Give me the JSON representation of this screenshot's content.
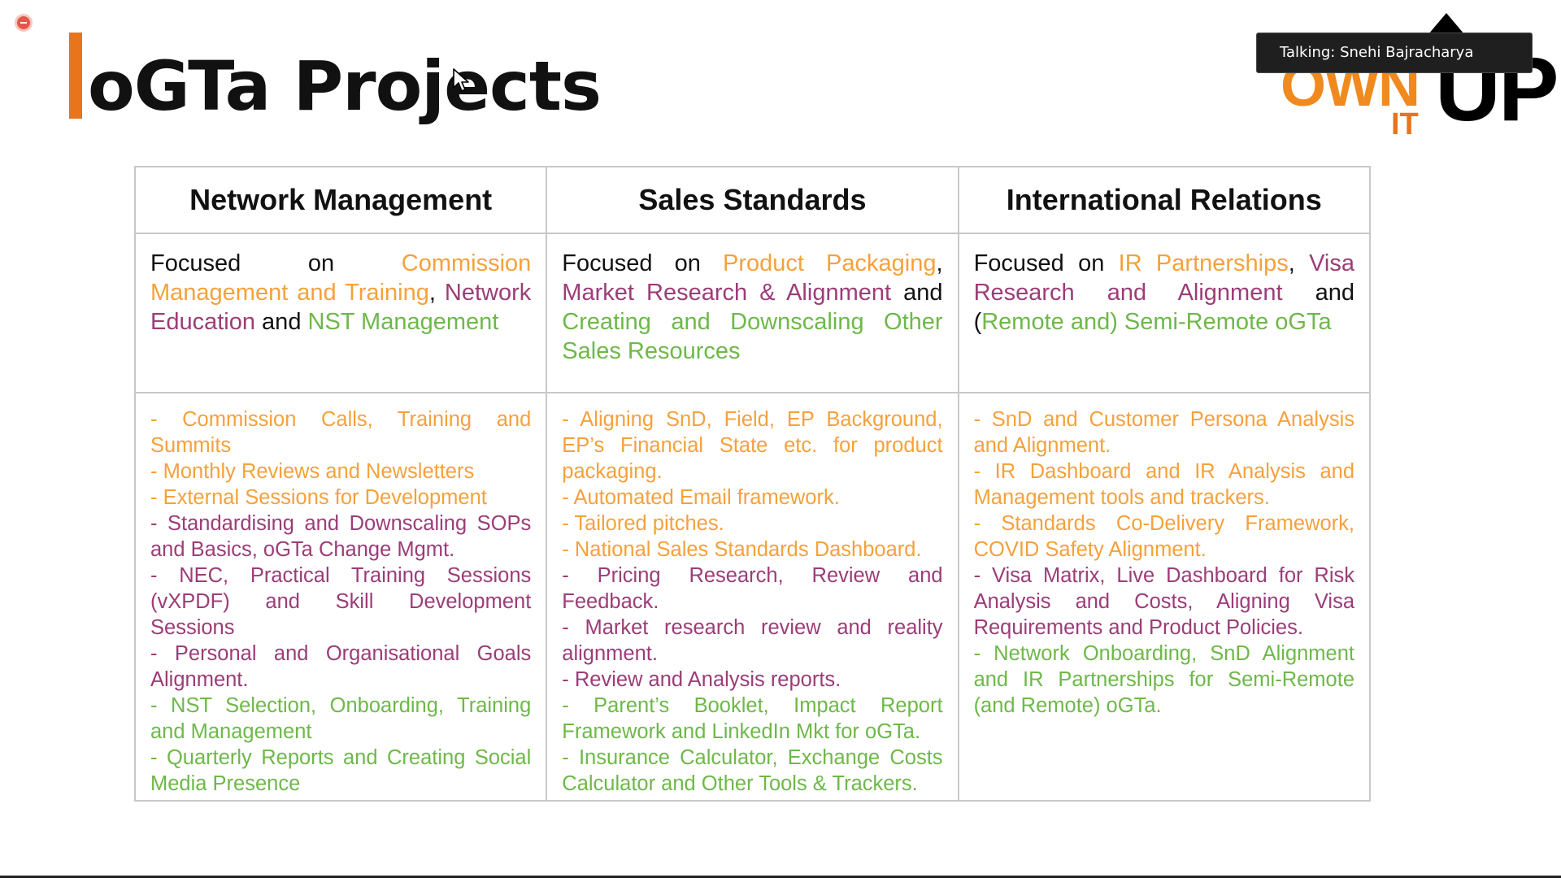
{
  "slide": {
    "title": "oGTa Projects"
  },
  "notification": {
    "text": "Talking: Snehi Bajracharya"
  },
  "logo": {
    "own": "OWN",
    "it": "IT",
    "up": "UP"
  },
  "table": {
    "columns": [
      {
        "header": "Network Management",
        "focus": [
          {
            "text": "Focused on ",
            "color": "black"
          },
          {
            "text": "Commission Management and Training",
            "color": "orange"
          },
          {
            "text": ", ",
            "color": "black"
          },
          {
            "text": "Network Education",
            "color": "purple"
          },
          {
            "text": " and ",
            "color": "black"
          },
          {
            "text": "NST Management",
            "color": "green"
          }
        ],
        "items": [
          {
            "text": "- Commission Calls, Training and Summits",
            "color": "orange"
          },
          {
            "text": "- Monthly Reviews and Newsletters",
            "color": "orange"
          },
          {
            "text": "- External Sessions for Development",
            "color": "orange"
          },
          {
            "text": "- Standardising and Downscaling SOPs and Basics, oGTa Change Mgmt.",
            "color": "purple"
          },
          {
            "text": "- NEC, Practical Training Sessions (vXPDF) and Skill Development Sessions",
            "color": "purple"
          },
          {
            "text": "- Personal and Organisational Goals Alignment.",
            "color": "purple"
          },
          {
            "text": "- NST Selection, Onboarding, Training and Management",
            "color": "green"
          },
          {
            "text": "- Quarterly Reports and Creating Social Media Presence",
            "color": "green"
          }
        ]
      },
      {
        "header": "Sales Standards",
        "focus": [
          {
            "text": "Focused on ",
            "color": "black"
          },
          {
            "text": "Product Packaging",
            "color": "orange"
          },
          {
            "text": ", ",
            "color": "black"
          },
          {
            "text": "Market Research & Alignment",
            "color": "purple"
          },
          {
            "text": " and ",
            "color": "black"
          },
          {
            "text": "Creating and Downscaling Other Sales Resources",
            "color": "green"
          }
        ],
        "items": [
          {
            "text": "- Aligning SnD, Field, EP Background, EP’s Financial State etc. for product packaging.",
            "color": "orange"
          },
          {
            "text": "- Automated Email framework.",
            "color": "orange"
          },
          {
            "text": "- Tailored pitches.",
            "color": "orange"
          },
          {
            "text": "- National Sales Standards Dashboard.",
            "color": "orange"
          },
          {
            "text": "- Pricing Research, Review and Feedback.",
            "color": "purple"
          },
          {
            "text": "- Market research review and reality alignment.",
            "color": "purple"
          },
          {
            "text": "- Review and Analysis reports.",
            "color": "purple"
          },
          {
            "text": "- Parent’s Booklet, Impact Report Framework and LinkedIn Mkt for oGTa.",
            "color": "green"
          },
          {
            "text": "- Insurance Calculator, Exchange Costs Calculator and Other Tools & Trackers.",
            "color": "green"
          }
        ]
      },
      {
        "header": "International Relations",
        "focus": [
          {
            "text": "Focused on ",
            "color": "black"
          },
          {
            "text": "IR Partnerships",
            "color": "orange"
          },
          {
            "text": ", ",
            "color": "black"
          },
          {
            "text": "Visa Research and Alignment",
            "color": "purple"
          },
          {
            "text": " and (",
            "color": "black"
          },
          {
            "text": "Remote and) Semi-Remote oGTa",
            "color": "green"
          }
        ],
        "items": [
          {
            "text": "- SnD and Customer Persona Analysis and Alignment.",
            "color": "orange"
          },
          {
            "text": "- IR Dashboard and IR Analysis and Management tools and trackers.",
            "color": "orange"
          },
          {
            "text": "- Standards Co-Delivery Framework, COVID Safety Alignment.",
            "color": "orange"
          },
          {
            "text": "- Visa Matrix, Live Dashboard for Risk Analysis and Costs, Aligning Visa Requirements and Product Policies.",
            "color": "purple"
          },
          {
            "text": "- Network Onboarding, SnD Alignment and IR Partnerships for Semi-Remote (and Remote) oGTa.",
            "color": "green"
          }
        ]
      }
    ]
  },
  "colors": {
    "accent": "#e8741c",
    "orange": "#f5a13c",
    "purple": "#9b3d78",
    "green": "#6eb84a"
  },
  "icons": [
    "record-indicator-icon",
    "mouse-cursor-icon",
    "own-it-up-logo"
  ]
}
